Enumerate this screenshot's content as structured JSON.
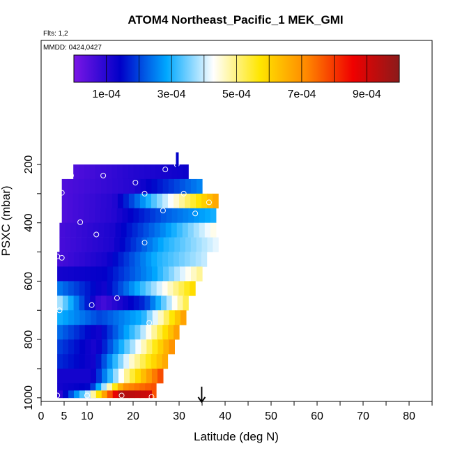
{
  "chart_data": {
    "type": "heatmap",
    "title": "ATOM4 Northeast_Pacific_1 MEK_GMI",
    "annotations": [
      "Flts: 1,2",
      "MMDD: 0424,0427"
    ],
    "xlabel": "Latitude (deg N)",
    "ylabel": "PSXC (mbar)",
    "xlim": [
      0,
      85
    ],
    "ylim": [
      1000,
      100
    ],
    "x_ticks": [
      0,
      5,
      10,
      20,
      30,
      40,
      50,
      60,
      70,
      80
    ],
    "y_ticks": [
      200,
      400,
      600,
      800,
      1000
    ],
    "colorbar": {
      "range": [
        0,
        0.001
      ],
      "ticks": [
        0.0001,
        0.0003,
        0.0005,
        0.0007,
        0.0009
      ],
      "tick_labels": [
        "1e-04",
        "3e-04",
        "5e-04",
        "7e-04",
        "9e-04"
      ],
      "colors": [
        "#7b16e6",
        "#0000c8",
        "#00a8ff",
        "#ffffff",
        "#ffe600",
        "#ff8800",
        "#f00000",
        "#8b1a1a"
      ]
    },
    "rows": [
      {
        "p": 225,
        "lat0": 7,
        "lat1": 32,
        "v": [
          5e-05,
          0.0001,
          0.00013
        ]
      },
      {
        "p": 275,
        "lat0": 4.5,
        "lat1": 35,
        "v": [
          5e-05,
          0.0001,
          0.00026
        ]
      },
      {
        "p": 325,
        "lat0": 4.5,
        "lat1": 38.5,
        "v": [
          5e-05,
          0.0001,
          0.0004,
          0.00068
        ]
      },
      {
        "p": 375,
        "lat0": 4.5,
        "lat1": 38,
        "v": [
          5e-05,
          0.0001,
          0.00022,
          0.0003
        ]
      },
      {
        "p": 425,
        "lat0": 4,
        "lat1": 38,
        "v": [
          6e-05,
          0.00011,
          0.00026,
          0.00045
        ]
      },
      {
        "p": 475,
        "lat0": 4,
        "lat1": 38.5,
        "v": [
          6e-05,
          0.00011,
          0.0003,
          0.00042
        ]
      },
      {
        "p": 525,
        "lat0": 3.5,
        "lat1": 36,
        "v": [
          6e-05,
          0.00012,
          0.0003,
          0.0004
        ]
      },
      {
        "p": 575,
        "lat0": 3.5,
        "lat1": 35,
        "v": [
          0.00012,
          0.00014,
          0.00028,
          0.0005
        ]
      },
      {
        "p": 625,
        "lat0": 3.5,
        "lat1": 33.5,
        "v": [
          0.00025,
          0.00012,
          0.00035,
          0.0006
        ]
      },
      {
        "p": 675,
        "lat0": 3.5,
        "lat1": 32,
        "v": [
          0.0004,
          6e-05,
          0.00018,
          0.00055
        ]
      },
      {
        "p": 725,
        "lat0": 3.5,
        "lat1": 31.5,
        "v": [
          0.0003,
          0.0002,
          0.0003,
          0.0007
        ]
      },
      {
        "p": 775,
        "lat0": 3.5,
        "lat1": 30,
        "v": [
          0.00024,
          0.00012,
          0.00035,
          0.0007
        ]
      },
      {
        "p": 825,
        "lat0": 3.5,
        "lat1": 29,
        "v": [
          0.0002,
          0.00011,
          0.0004,
          0.00072
        ]
      },
      {
        "p": 875,
        "lat0": 3.5,
        "lat1": 27.5,
        "v": [
          0.00018,
          0.00012,
          0.00045,
          0.00068
        ]
      },
      {
        "p": 925,
        "lat0": 3.5,
        "lat1": 26.5,
        "v": [
          0.00012,
          0.00012,
          0.0005,
          0.0008
        ]
      },
      {
        "p": 975,
        "lat0": 3.5,
        "lat1": 25,
        "v": [
          0.00012,
          0.00015,
          0.0007,
          0.00078
        ]
      },
      {
        "p": 1000,
        "lat0": 3.5,
        "lat1": 24,
        "v": [
          6e-05,
          0.0004,
          0.00095,
          0.0009
        ]
      }
    ],
    "points": [
      [
        6.5,
        238
      ],
      [
        13.5,
        238
      ],
      [
        27,
        217
      ],
      [
        29.5,
        200
      ],
      [
        20.5,
        262
      ],
      [
        4.5,
        297
      ],
      [
        22.5,
        300
      ],
      [
        31,
        300
      ],
      [
        26.5,
        358
      ],
      [
        33.5,
        368
      ],
      [
        36.5,
        330
      ],
      [
        8.5,
        398
      ],
      [
        12,
        440
      ],
      [
        22.5,
        468
      ],
      [
        3.5,
        515
      ],
      [
        4.5,
        520
      ],
      [
        16.5,
        658
      ],
      [
        11,
        682
      ],
      [
        4,
        700
      ],
      [
        23.5,
        743
      ],
      [
        3.5,
        992
      ],
      [
        10,
        992
      ],
      [
        17.5,
        992
      ],
      [
        24,
        997
      ]
    ],
    "markers": [
      {
        "lat": 29,
        "p": 175,
        "kind": "top-bar"
      },
      {
        "lat": 34,
        "p": 1000,
        "kind": "down-arrow"
      }
    ]
  }
}
